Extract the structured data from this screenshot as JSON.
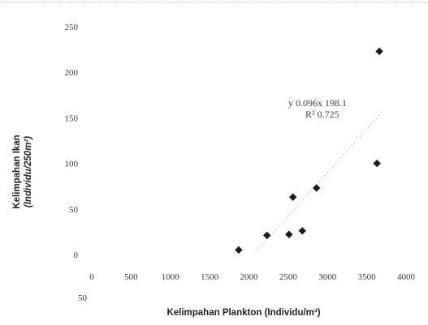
{
  "chart_data": {
    "type": "scatter",
    "title": "",
    "xlabel": "Kelimpahan Plankton (Individu/m³)",
    "ylabel": "Kelimpahan Ikan",
    "ylabel_sub": "(Individu/250m²)",
    "xlim": [
      0,
      4000
    ],
    "ylim": [
      -50,
      250
    ],
    "x_ticks": [
      0,
      500,
      1000,
      1500,
      2000,
      2500,
      3000,
      3500,
      4000
    ],
    "y_ticks": [
      0,
      50,
      100,
      150,
      200,
      250
    ],
    "y_ticks_text": [
      "0",
      "50",
      "100",
      "150",
      "200",
      "250"
    ],
    "y_bottom_tick_text": "50",
    "grid": false,
    "points": [
      {
        "x": 1870,
        "y": 5
      },
      {
        "x": 2230,
        "y": 21
      },
      {
        "x": 2510,
        "y": 22
      },
      {
        "x": 2560,
        "y": 63
      },
      {
        "x": 2680,
        "y": 26
      },
      {
        "x": 2860,
        "y": 73
      },
      {
        "x": 3630,
        "y": 100
      },
      {
        "x": 3660,
        "y": 223
      }
    ],
    "trendline": {
      "slope": 0.096,
      "intercept": -198.1,
      "x_range": [
        2100,
        3700
      ],
      "style": "dotted"
    },
    "equation_line1": "y  0.096x  198.1",
    "equation_line2": "R²  0.725",
    "marker_color": "#1a1a1a",
    "trendline_color": "#9a9a9a"
  }
}
